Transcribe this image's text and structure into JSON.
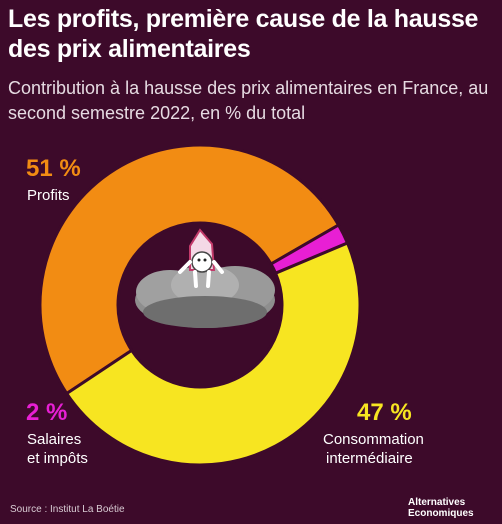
{
  "title": "Les profits, première cause de la hausse des prix alimentaires",
  "subtitle": "Contribution à la hausse des prix alimentaires en France, au second semestre 2022, en % du total",
  "source": "Source : Institut La Boétie",
  "logo": {
    "line1": "Alternatives",
    "line2": "Economiques"
  },
  "colors": {
    "background": "#3d0a2a",
    "profits": "#f28c13",
    "salaires": "#e81fd4",
    "consommation": "#f7e521"
  },
  "chart_data": {
    "type": "pie",
    "title": "Les profits, première cause de la hausse des prix alimentaires",
    "subtitle": "Contribution à la hausse des prix alimentaires en France, au second semestre 2022, en % du total",
    "unit": "% du total",
    "slices": [
      {
        "label": "Profits",
        "value": 51,
        "value_label": "51 %",
        "color": "#f28c13"
      },
      {
        "label": "Salaires et impôts",
        "label_line1": "Salaires",
        "label_line2": "et impôts",
        "value": 2,
        "value_label": "2 %",
        "color": "#e81fd4"
      },
      {
        "label": "Consommation intermédiaire",
        "label_line1": "Consommation",
        "label_line2": "intermédiaire",
        "value": 47,
        "value_label": "47 %",
        "color": "#f7e521"
      }
    ]
  }
}
